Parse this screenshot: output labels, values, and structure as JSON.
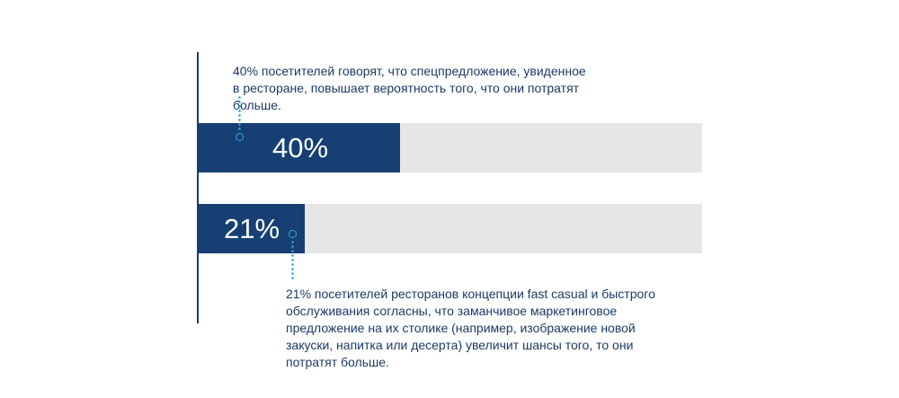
{
  "chart_data": {
    "type": "bar",
    "orientation": "horizontal",
    "categories": [
      "40%",
      "21%"
    ],
    "values": [
      40,
      21
    ],
    "xlim": [
      0,
      100
    ],
    "annotations": [
      "40% посетителей говорят, что спецпредложение, увиденное в ресторане, повышает вероятность того, что они потратят больше.",
      "21% посетителей ресторанов концепции fast casual и быстрого обслуживания согласны, что заманчивое маркетинговое предложение на их столике (например, изображение новой закуски, напитка или десерта) увеличит шансы того, то они потратят больше."
    ],
    "title": "",
    "xlabel": "",
    "ylabel": "",
    "grid": false,
    "colors": {
      "bar": "#173f74",
      "track": "#e6e6e7",
      "axis": "#1d3b6b",
      "accent": "#2aa7e1",
      "text": "#1a3a66",
      "label": "#ffffff"
    }
  }
}
